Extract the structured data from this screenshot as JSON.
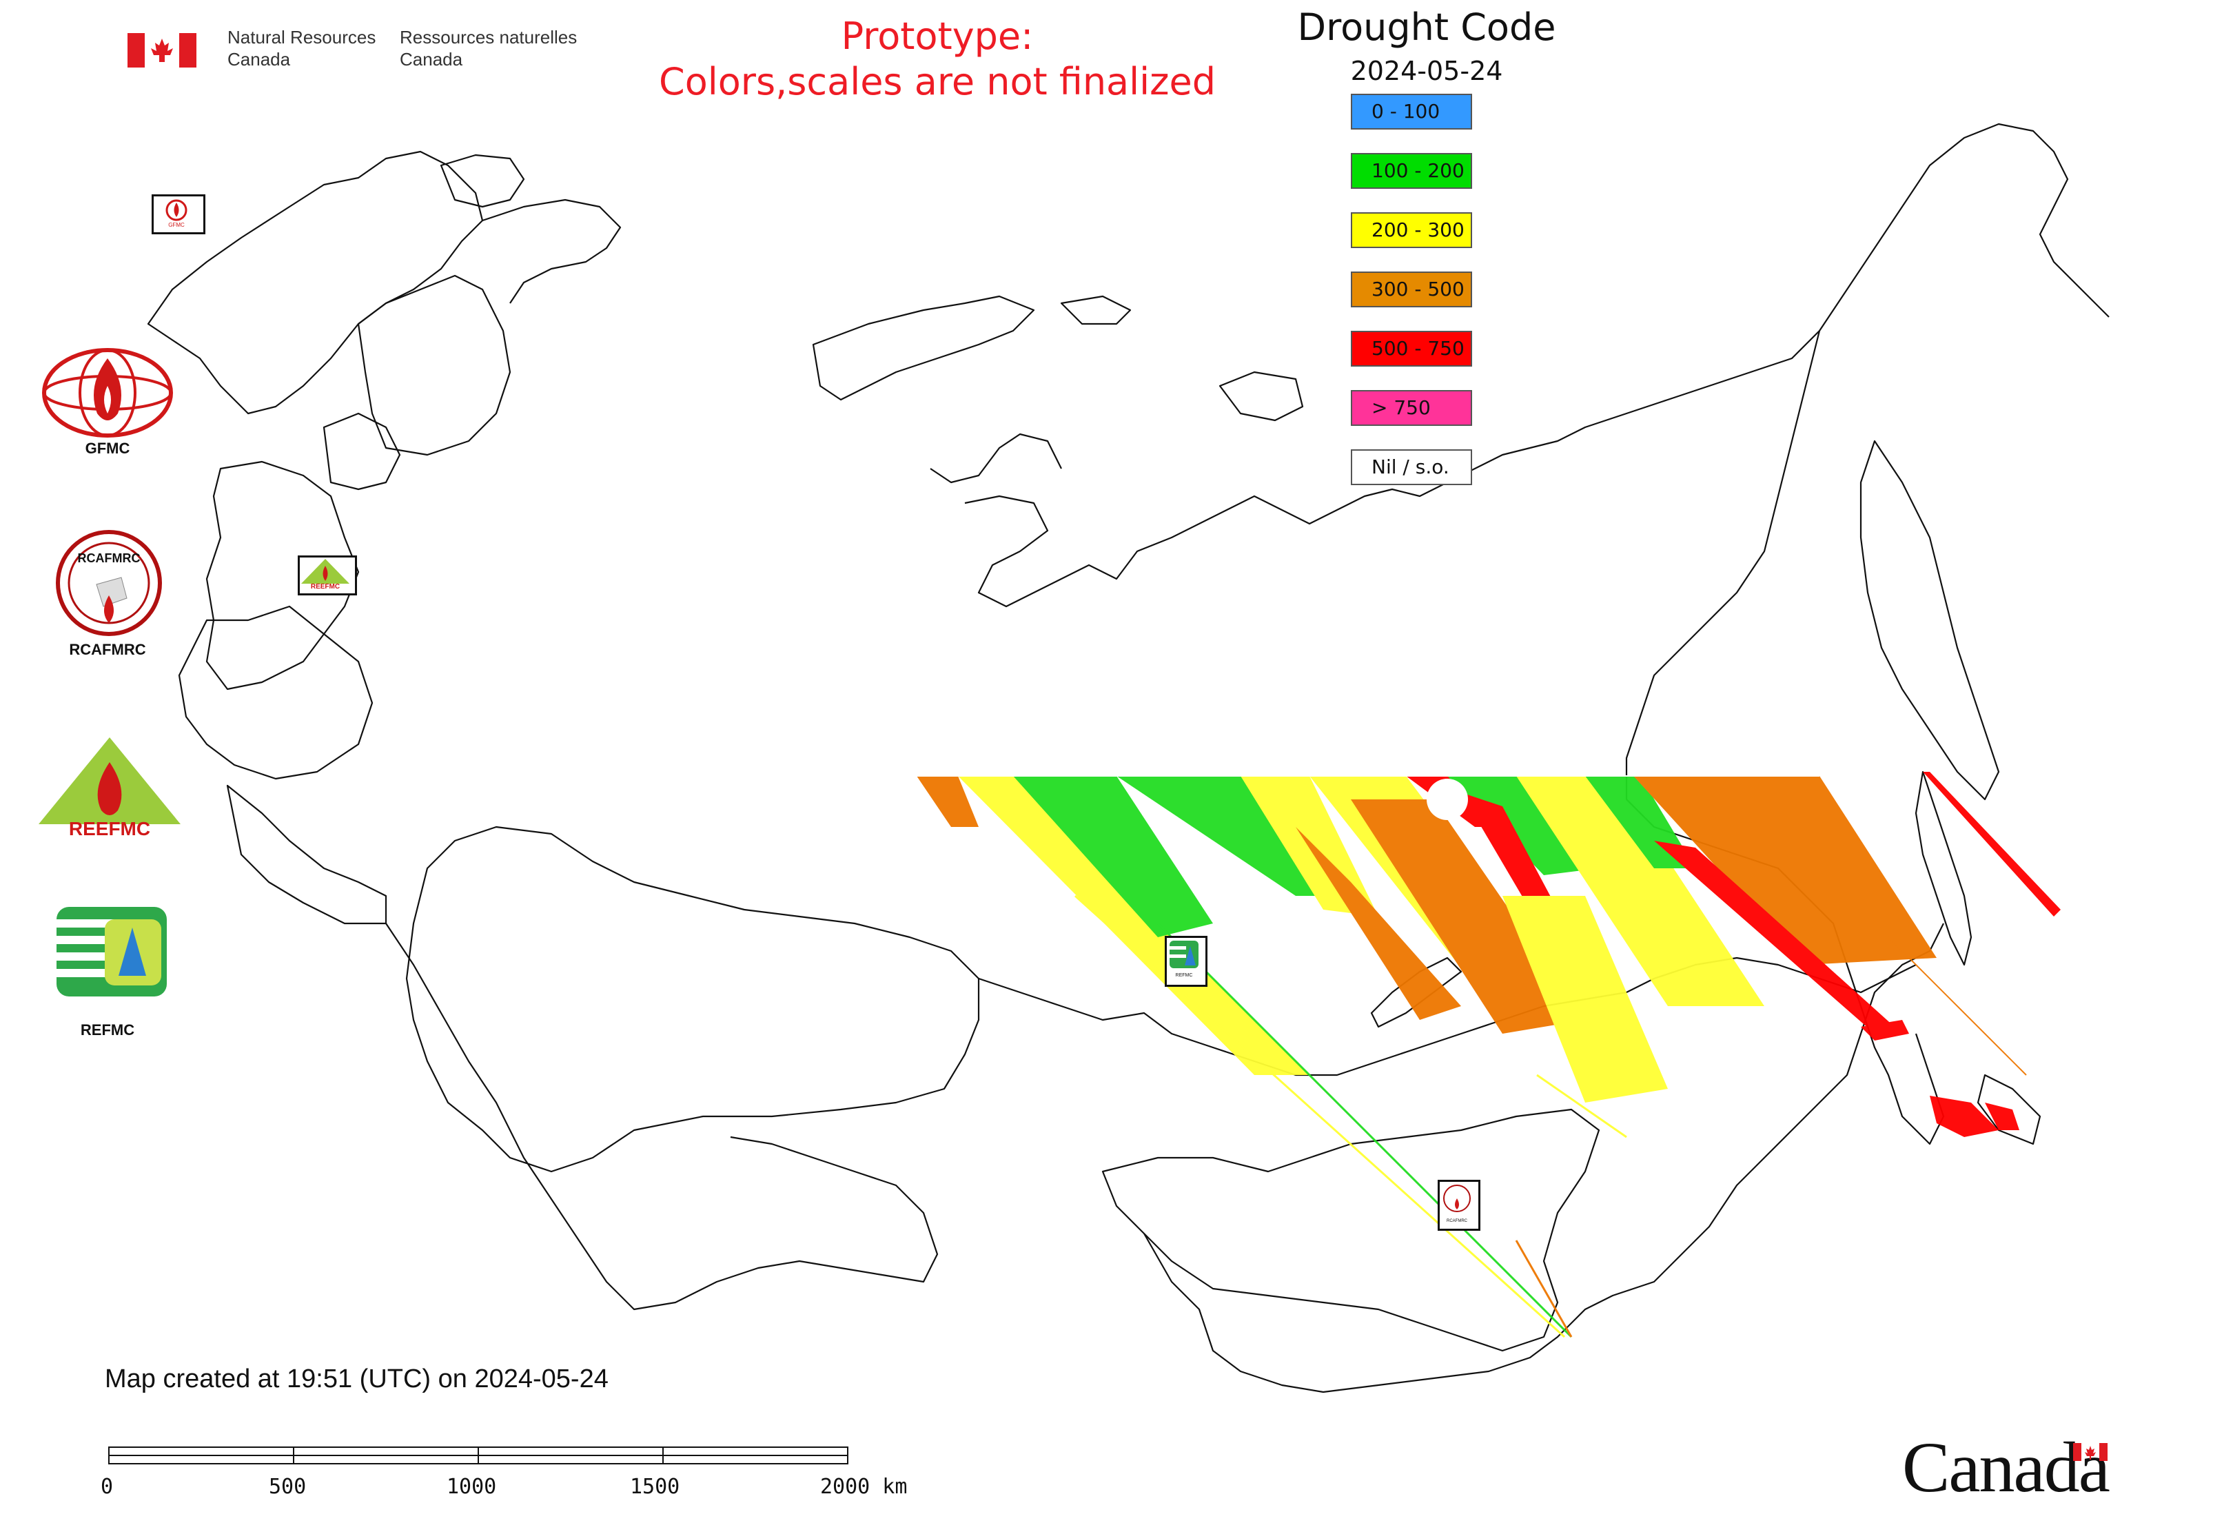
{
  "header": {
    "department_en": [
      "Natural Resources",
      "Canada"
    ],
    "department_fr": [
      "Ressources naturelles",
      "Canada"
    ],
    "flag_icon": "canada-flag-icon",
    "prototype_notice": [
      "Prototype:",
      "Colors,scales are not finalized"
    ],
    "notice_color": "#ee1c25"
  },
  "legend": {
    "title": "Drought Code",
    "date": "2024-05-24",
    "items": [
      {
        "label": "0 - 100",
        "color": "#3399ff"
      },
      {
        "label": "100 - 200",
        "color": "#00dd00"
      },
      {
        "label": "200 - 300",
        "color": "#ffff00"
      },
      {
        "label": "300 - 500",
        "color": "#e58a00"
      },
      {
        "label": "500 - 750",
        "color": "#ff0000"
      },
      {
        "label": "> 750",
        "color": "#ff3399"
      },
      {
        "label": "Nil / s.o.",
        "color": "#ffffff"
      }
    ]
  },
  "organizations": [
    {
      "name": "GFMC",
      "icon": "gfmc-logo"
    },
    {
      "name": "RCAFMRC",
      "icon": "rcafmrc-logo"
    },
    {
      "name": "REEFMC",
      "icon": "reefmc-logo"
    },
    {
      "name": "REFMC",
      "icon": "refmc-logo"
    }
  ],
  "map_markers": {
    "gfmc": "GFMC",
    "reefmc": "REEFMC",
    "refmc": "REFMC",
    "rcafmrc": "RCAFMRC"
  },
  "footer": {
    "created": "Map created at 19:51 (UTC) on 2024-05-24",
    "scale_ticks": [
      "0",
      "500",
      "1000",
      "1500",
      "2000 km"
    ],
    "wordmark": "Canada"
  }
}
